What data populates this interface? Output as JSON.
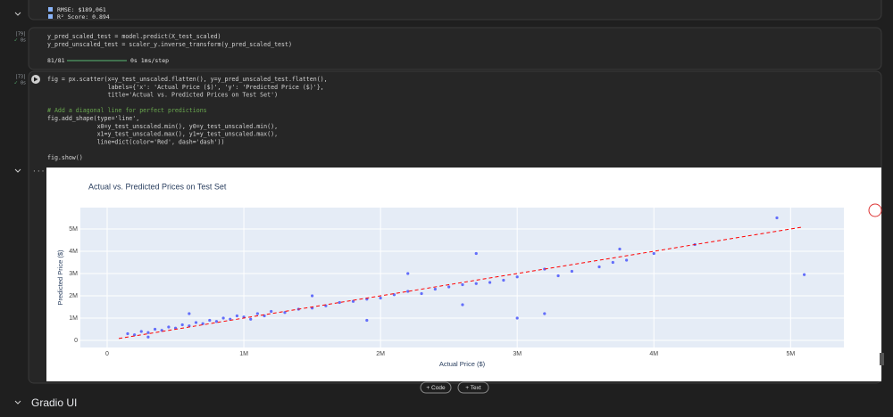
{
  "cells": [
    {
      "outputs": [
        "RMSE: $189,061",
        "R² Score: 0.894"
      ]
    },
    {
      "exec": "[79]",
      "time": "0s",
      "code": [
        [
          "y_pred_scaled_test = model.predict(X_test_scaled)",
          "y_pred_unscaled_test = scaler_y.inverse_transform(y_pred_scaled_test)"
        ]
      ],
      "progress": {
        "steps": "81/81",
        "timing": "0s 1ms/step"
      }
    },
    {
      "exec": "[73]",
      "time": "0s",
      "code": [
        [
          "fig = px.scatter(x=y_test_unscaled.flatten(), y=y_pred_unscaled_test.flatten(),",
          "                 labels={'x': 'Actual Price ($)', 'y': 'Predicted Price ($)'},",
          "                 title='Actual vs. Predicted Prices on Test Set')"
        ],
        [
          "# Add a diagonal line for perfect predictions",
          "fig.add_shape(type='line',",
          "              x0=y_test_unscaled.min(), y0=y_test_unscaled.min(),",
          "              x1=y_test_unscaled.max(), y1=y_test_unscaled.max(),",
          "              line=dict(color='Red', dash='dash'))"
        ],
        [
          "fig.show()"
        ]
      ]
    }
  ],
  "chart_data": {
    "type": "scatter",
    "title": "Actual vs. Predicted Prices on Test Set",
    "x_label": "Actual Price ($)",
    "y_label": "Predicted Price ($)",
    "xlim": [
      -196000,
      5390000
    ],
    "ylim": [
      -320000,
      5960000
    ],
    "xticks": [
      0,
      {
        "value": 1000000,
        "label": "1M"
      },
      {
        "value": 2000000,
        "label": "2M"
      },
      {
        "value": 3000000,
        "label": "3M"
      },
      {
        "value": 4000000,
        "label": "4M"
      },
      {
        "value": 5000000,
        "label": "5M"
      }
    ],
    "yticks": [
      0,
      {
        "value": 1000000,
        "label": "1M"
      },
      {
        "value": 2000000,
        "label": "2M"
      },
      {
        "value": 3000000,
        "label": "3M"
      },
      {
        "value": 4000000,
        "label": "4M"
      },
      {
        "value": 5000000,
        "label": "5M"
      }
    ],
    "grid": true,
    "plot_background": "#e5ecf6",
    "points": {
      "color": "#636efa",
      "x": [
        150000,
        200000,
        250000,
        300000,
        350000,
        400000,
        450000,
        500000,
        550000,
        600000,
        650000,
        700000,
        750000,
        800000,
        850000,
        900000,
        950000,
        1000000,
        1050000,
        1100000,
        1150000,
        1200000,
        1300000,
        1400000,
        1500000,
        1600000,
        1700000,
        1800000,
        1900000,
        2000000,
        2100000,
        2200000,
        2300000,
        2400000,
        2500000,
        2600000,
        2700000,
        2800000,
        2900000,
        3000000,
        3200000,
        3300000,
        3400000,
        3600000,
        3700000,
        3800000,
        4300000,
        2700000,
        2200000,
        3000000,
        3200000,
        4900000,
        5100000,
        1500000,
        600000,
        1900000,
        2600000,
        4000000,
        3750000,
        300000
      ],
      "y": [
        300000,
        250000,
        400000,
        350000,
        500000,
        450000,
        600000,
        550000,
        700000,
        650000,
        800000,
        750000,
        900000,
        850000,
        1000000,
        950000,
        1100000,
        1050000,
        950000,
        1200000,
        1100000,
        1300000,
        1250000,
        1400000,
        1450000,
        1550000,
        1700000,
        1750000,
        1850000,
        1900000,
        2050000,
        2200000,
        2100000,
        2300000,
        2400000,
        2500000,
        2550000,
        2600000,
        2700000,
        2850000,
        3200000,
        2900000,
        3100000,
        3300000,
        3500000,
        3600000,
        4300000,
        3900000,
        3000000,
        1000000,
        1200000,
        5500000,
        2950000,
        2000000,
        1200000,
        900000,
        1600000,
        3900000,
        4100000,
        150000
      ]
    },
    "diagonal": {
      "color": "red",
      "dash": "dash",
      "x": [
        85000,
        5080000
      ],
      "y": [
        85000,
        5080000
      ]
    }
  },
  "buttons": [
    "+ Code",
    "+ Text"
  ],
  "section": "Gradio UI"
}
